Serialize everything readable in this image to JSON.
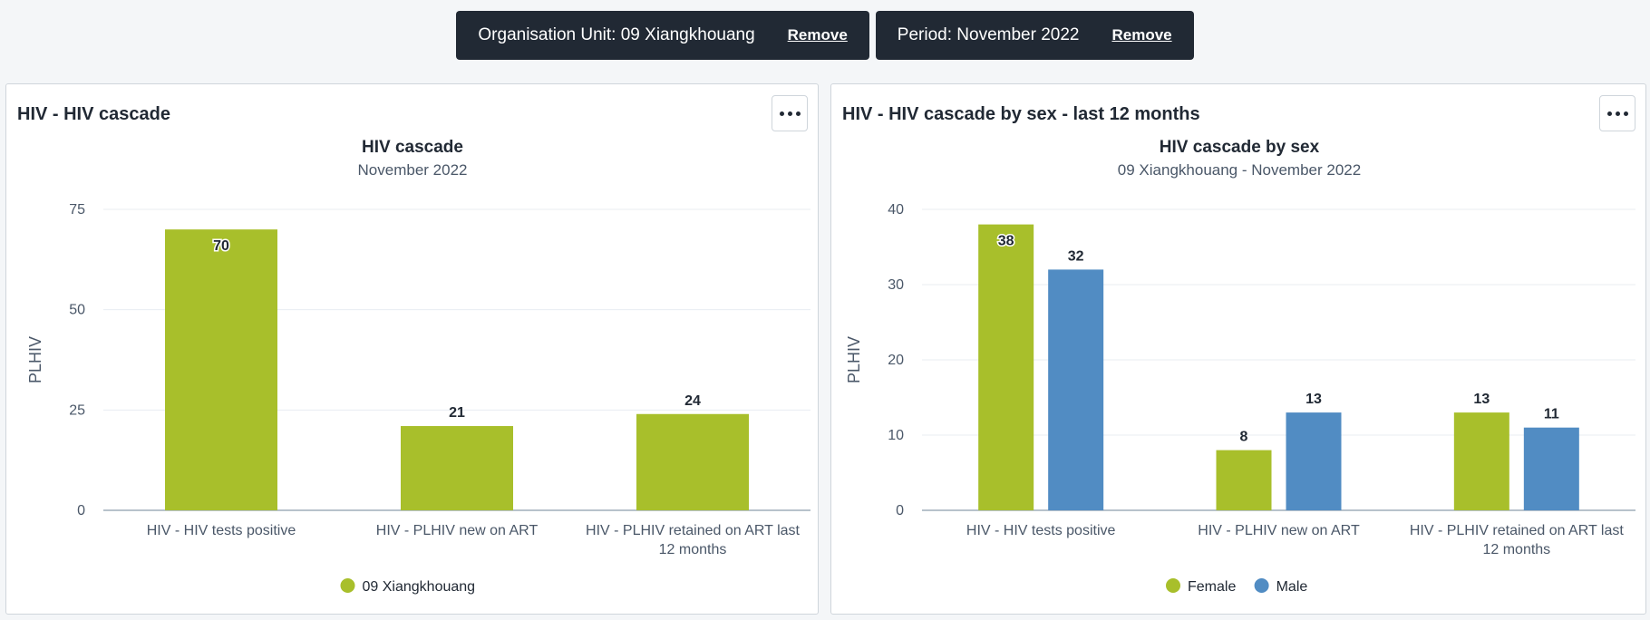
{
  "filters": [
    {
      "label": "Organisation Unit: 09 Xiangkhouang",
      "remove_label": "Remove"
    },
    {
      "label": "Period: November 2022",
      "remove_label": "Remove"
    }
  ],
  "colors": {
    "female": "#a8bf2b",
    "male": "#518cc3",
    "series": "#a8bf2b"
  },
  "cards": [
    {
      "title": "HIV - HIV cascade",
      "menu_icon": "more-options-icon"
    },
    {
      "title": "HIV - HIV cascade by sex - last 12 months",
      "menu_icon": "more-options-icon"
    }
  ],
  "chart_data": [
    {
      "type": "bar",
      "title": "HIV cascade",
      "subtitle": "November 2022",
      "ylabel": "PLHIV",
      "ylim": [
        0,
        75
      ],
      "yticks": [
        0,
        25,
        50,
        75
      ],
      "grid": true,
      "legend_position": "bottom",
      "categories": [
        [
          "HIV - HIV tests positive"
        ],
        [
          "HIV - PLHIV new on ART"
        ],
        [
          "HIV - PLHIV retained on ART last",
          "12 months"
        ]
      ],
      "series": [
        {
          "name": "09 Xiangkhouang",
          "color": "#a8bf2b",
          "values": [
            70,
            21,
            24
          ]
        }
      ]
    },
    {
      "type": "bar",
      "title": "HIV cascade by sex",
      "subtitle": "09 Xiangkhouang - November 2022",
      "ylabel": "PLHIV",
      "ylim": [
        0,
        40
      ],
      "yticks": [
        0,
        10,
        20,
        30,
        40
      ],
      "grid": true,
      "legend_position": "bottom",
      "categories": [
        [
          "HIV - HIV tests positive"
        ],
        [
          "HIV - PLHIV new on ART"
        ],
        [
          "HIV - PLHIV retained on ART last",
          "12 months"
        ]
      ],
      "series": [
        {
          "name": "Female",
          "color": "#a8bf2b",
          "values": [
            38,
            8,
            13
          ]
        },
        {
          "name": "Male",
          "color": "#518cc3",
          "values": [
            32,
            13,
            11
          ]
        }
      ]
    }
  ]
}
